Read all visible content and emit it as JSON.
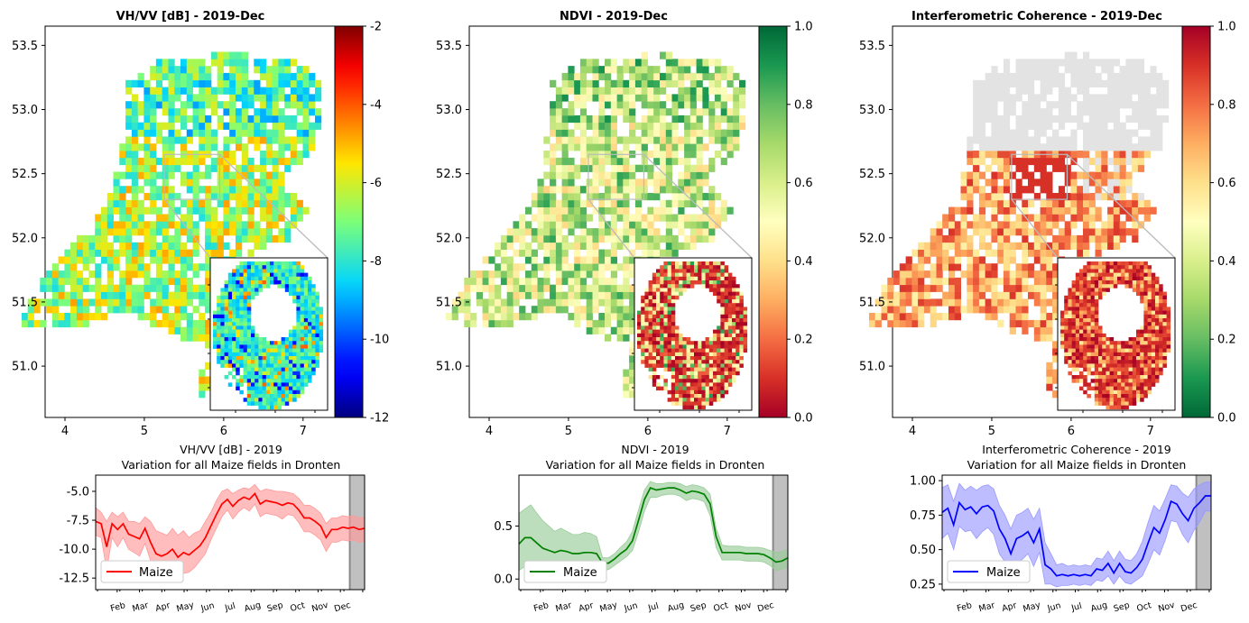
{
  "chart_data": [
    {
      "type": "heatmap",
      "kind": "map",
      "title": "VH/VV [dB] - 2019-Dec",
      "xticks": [
        "4",
        "5",
        "6",
        "7"
      ],
      "yticks": [
        "53.5",
        "53.0",
        "52.5",
        "52.0",
        "51.5",
        "51.0"
      ],
      "xlim": [
        3.75,
        7.4
      ],
      "ylim": [
        50.6,
        53.65
      ],
      "colorbar": {
        "colormap": "jet",
        "range": [
          -12,
          -2
        ],
        "ticks": [
          "-2",
          "-4",
          "-6",
          "-8",
          "-10",
          "-12"
        ]
      },
      "inset": true
    },
    {
      "type": "heatmap",
      "kind": "map",
      "title": "NDVI - 2019-Dec",
      "xticks": [
        "4",
        "5",
        "6",
        "7"
      ],
      "yticks": [
        "53.5",
        "53.0",
        "52.5",
        "52.0",
        "51.5",
        "51.0"
      ],
      "xlim": [
        3.75,
        7.4
      ],
      "ylim": [
        50.6,
        53.65
      ],
      "colorbar": {
        "colormap": "RdYlGn",
        "range": [
          0,
          1
        ],
        "ticks": [
          "1.0",
          "0.8",
          "0.6",
          "0.4",
          "0.2",
          "0.0"
        ]
      },
      "inset": true
    },
    {
      "type": "heatmap",
      "kind": "map",
      "title": "Interferometric Coherence - 2019-Dec",
      "xticks": [
        "4",
        "5",
        "6",
        "7"
      ],
      "yticks": [
        "53.5",
        "53.0",
        "52.5",
        "52.0",
        "51.5",
        "51.0"
      ],
      "xlim": [
        3.75,
        7.4
      ],
      "ylim": [
        50.6,
        53.65
      ],
      "colorbar": {
        "colormap": "RdYlGn_r",
        "range": [
          0,
          1
        ],
        "ticks": [
          "1.0",
          "0.8",
          "0.6",
          "0.4",
          "0.2",
          "0.0"
        ]
      },
      "inset": true
    },
    {
      "type": "line",
      "title_line1": "VH/VV [dB] - 2019",
      "title_line2": "Variation for all Maize fields in Dronten",
      "color": "#ff0000",
      "band_color": "#ff9999",
      "legend": "Maize",
      "legend_position": "lower-left",
      "ylim": [
        -13.5,
        -3.6
      ],
      "yticks": [
        "-5.0",
        "-7.5",
        "-10.0",
        "-12.5"
      ],
      "months": [
        "Feb",
        "Mar",
        "Apr",
        "May",
        "Jun",
        "Jul",
        "Aug",
        "Sep",
        "Oct",
        "Nov",
        "Dec"
      ],
      "highlight": "Dec",
      "series": [
        {
          "name": "Maize",
          "mean": [
            -7.6,
            -7.8,
            -9.8,
            -7.8,
            -8.3,
            -7.8,
            -8.7,
            -8.9,
            -9.1,
            -8.2,
            -9.4,
            -10.4,
            -10.6,
            -10.4,
            -10.0,
            -10.7,
            -10.3,
            -10.5,
            -10.1,
            -9.7,
            -9.0,
            -8.0,
            -7.0,
            -6.1,
            -5.7,
            -6.3,
            -5.8,
            -5.5,
            -5.7,
            -5.2,
            -6.1,
            -5.8,
            -5.9,
            -6.0,
            -6.2,
            -6.0,
            -6.1,
            -6.6,
            -7.3,
            -7.3,
            -7.6,
            -8.0,
            -9.0,
            -8.3,
            -8.3,
            -8.1,
            -8.2,
            -8.1,
            -8.3,
            -8.2
          ],
          "upper": [
            -6.4,
            -6.8,
            -7.6,
            -6.8,
            -7.2,
            -6.8,
            -7.6,
            -7.6,
            -7.8,
            -7.2,
            -7.6,
            -8.4,
            -8.6,
            -8.8,
            -8.2,
            -8.8,
            -8.4,
            -9.0,
            -8.6,
            -8.4,
            -7.6,
            -6.8,
            -5.8,
            -5.0,
            -4.8,
            -5.2,
            -4.9,
            -4.7,
            -4.8,
            -4.4,
            -5.0,
            -4.8,
            -4.9,
            -5.0,
            -5.0,
            -5.1,
            -5.2,
            -5.6,
            -6.2,
            -6.2,
            -6.5,
            -6.9,
            -7.8,
            -7.3,
            -7.3,
            -7.1,
            -7.2,
            -7.1,
            -7.3,
            -7.2
          ],
          "lower": [
            -8.8,
            -9.0,
            -11.8,
            -9.0,
            -9.8,
            -9.0,
            -10.0,
            -10.3,
            -10.6,
            -9.5,
            -11.0,
            -12.3,
            -12.4,
            -12.0,
            -11.8,
            -12.4,
            -12.1,
            -12.0,
            -11.6,
            -11.0,
            -10.4,
            -9.2,
            -8.2,
            -7.2,
            -6.6,
            -7.4,
            -6.8,
            -6.4,
            -6.7,
            -6.1,
            -7.2,
            -6.9,
            -7.0,
            -7.1,
            -7.4,
            -7.0,
            -7.1,
            -7.7,
            -8.5,
            -8.5,
            -8.8,
            -9.2,
            -10.2,
            -9.4,
            -9.4,
            -9.2,
            -9.3,
            -9.2,
            -9.4,
            -9.3
          ]
        }
      ]
    },
    {
      "type": "line",
      "title_line1": "NDVI - 2019",
      "title_line2": "Variation for all Maize fields in Dronten",
      "color": "#008000",
      "band_color": "#99cc99",
      "legend": "Maize",
      "legend_position": "lower-left",
      "ylim": [
        -0.1,
        0.98
      ],
      "yticks": [
        "0.5",
        "0.0"
      ],
      "months": [
        "Feb",
        "Mar",
        "Apr",
        "May",
        "Jun",
        "Jul",
        "Aug",
        "Sep",
        "Oct",
        "Nov",
        "Dec"
      ],
      "highlight": "Dec",
      "series": [
        {
          "name": "Maize",
          "mean": [
            0.33,
            0.39,
            0.39,
            0.34,
            0.29,
            0.27,
            0.25,
            0.27,
            0.26,
            0.24,
            0.24,
            0.25,
            0.25,
            0.24,
            0.15,
            0.15,
            0.19,
            0.24,
            0.28,
            0.36,
            0.55,
            0.75,
            0.86,
            0.84,
            0.85,
            0.86,
            0.86,
            0.84,
            0.81,
            0.83,
            0.82,
            0.8,
            0.71,
            0.4,
            0.25,
            0.25,
            0.25,
            0.25,
            0.24,
            0.24,
            0.24,
            0.23,
            0.2,
            0.16,
            0.17,
            0.2
          ],
          "upper": [
            0.62,
            0.66,
            0.7,
            0.62,
            0.55,
            0.5,
            0.45,
            0.48,
            0.45,
            0.42,
            0.42,
            0.44,
            0.43,
            0.4,
            0.2,
            0.2,
            0.24,
            0.3,
            0.35,
            0.45,
            0.65,
            0.84,
            0.92,
            0.9,
            0.9,
            0.91,
            0.91,
            0.9,
            0.87,
            0.89,
            0.88,
            0.86,
            0.8,
            0.48,
            0.32,
            0.31,
            0.31,
            0.31,
            0.3,
            0.3,
            0.3,
            0.29,
            0.27,
            0.25,
            0.26,
            0.28
          ],
          "lower": [
            0.08,
            0.12,
            0.12,
            0.1,
            0.07,
            0.06,
            0.06,
            0.07,
            0.07,
            0.06,
            0.07,
            0.07,
            0.08,
            0.08,
            0.08,
            0.09,
            0.13,
            0.17,
            0.21,
            0.27,
            0.44,
            0.64,
            0.77,
            0.77,
            0.79,
            0.8,
            0.8,
            0.78,
            0.74,
            0.76,
            0.75,
            0.73,
            0.6,
            0.3,
            0.18,
            0.18,
            0.18,
            0.18,
            0.17,
            0.17,
            0.17,
            0.16,
            0.13,
            0.08,
            0.09,
            0.12
          ]
        }
      ]
    },
    {
      "type": "line",
      "title_line1": "Interferometric Coherence - 2019",
      "title_line2": "Variation for all Maize fields in Dronten",
      "color": "#0000ff",
      "band_color": "#9999ff",
      "legend": "Maize",
      "legend_position": "lower-left",
      "ylim": [
        0.21,
        1.04
      ],
      "yticks": [
        "1.00",
        "0.75",
        "0.50",
        "0.25"
      ],
      "months": [
        "Feb",
        "Mar",
        "Apr",
        "May",
        "Jun",
        "Jul",
        "Aug",
        "Sep",
        "Oct",
        "Nov",
        "Dec"
      ],
      "highlight": "Dec",
      "series": [
        {
          "name": "Maize",
          "mean": [
            0.77,
            0.8,
            0.68,
            0.84,
            0.79,
            0.81,
            0.76,
            0.81,
            0.82,
            0.78,
            0.65,
            0.58,
            0.47,
            0.58,
            0.6,
            0.63,
            0.55,
            0.65,
            0.39,
            0.36,
            0.31,
            0.32,
            0.31,
            0.32,
            0.31,
            0.32,
            0.31,
            0.36,
            0.35,
            0.4,
            0.33,
            0.4,
            0.34,
            0.33,
            0.37,
            0.43,
            0.55,
            0.66,
            0.62,
            0.72,
            0.85,
            0.83,
            0.76,
            0.71,
            0.8,
            0.84,
            0.89,
            0.89
          ],
          "upper": [
            0.95,
            0.97,
            0.85,
            0.98,
            0.93,
            0.96,
            0.93,
            0.96,
            0.97,
            0.94,
            0.82,
            0.75,
            0.65,
            0.75,
            0.77,
            0.8,
            0.72,
            0.8,
            0.55,
            0.47,
            0.39,
            0.4,
            0.38,
            0.39,
            0.38,
            0.39,
            0.38,
            0.44,
            0.43,
            0.49,
            0.42,
            0.49,
            0.43,
            0.42,
            0.47,
            0.56,
            0.7,
            0.82,
            0.78,
            0.87,
            0.97,
            0.96,
            0.91,
            0.88,
            0.94,
            0.97,
            0.99,
            0.99
          ],
          "lower": [
            0.58,
            0.62,
            0.5,
            0.67,
            0.63,
            0.64,
            0.58,
            0.63,
            0.66,
            0.61,
            0.47,
            0.41,
            0.3,
            0.4,
            0.43,
            0.47,
            0.38,
            0.48,
            0.25,
            0.25,
            0.23,
            0.24,
            0.24,
            0.25,
            0.24,
            0.25,
            0.24,
            0.28,
            0.27,
            0.31,
            0.25,
            0.31,
            0.26,
            0.25,
            0.28,
            0.31,
            0.4,
            0.5,
            0.46,
            0.57,
            0.71,
            0.7,
            0.61,
            0.55,
            0.64,
            0.7,
            0.78,
            0.78
          ]
        }
      ]
    }
  ]
}
